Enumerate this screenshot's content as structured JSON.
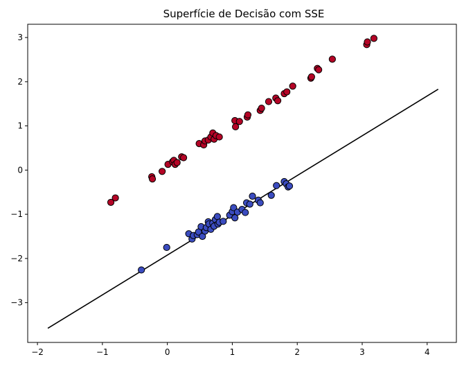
{
  "chart_data": {
    "type": "scatter",
    "title": "Superfície de Decisão com SSE",
    "xlabel": "",
    "ylabel": "",
    "xlim": [
      -2.15,
      4.45
    ],
    "ylim": [
      -3.9,
      3.3
    ],
    "xticks": [
      -2,
      -1,
      0,
      1,
      2,
      3,
      4
    ],
    "yticks": [
      -3,
      -2,
      -1,
      0,
      1,
      2,
      3
    ],
    "xtick_labels": [
      "−2",
      "−1",
      "0",
      "1",
      "2",
      "3",
      "4"
    ],
    "ytick_labels": [
      "−3",
      "−2",
      "−1",
      "0",
      "1",
      "2",
      "3"
    ],
    "grid": false,
    "legend": "none",
    "series": [
      {
        "color": "#b40426",
        "points": [
          [
            -0.87,
            -0.73
          ],
          [
            -0.8,
            -0.63
          ],
          [
            -0.24,
            -0.15
          ],
          [
            -0.23,
            -0.2
          ],
          [
            -0.08,
            -0.03
          ],
          [
            0.01,
            0.13
          ],
          [
            0.08,
            0.19
          ],
          [
            0.1,
            0.22
          ],
          [
            0.12,
            0.13
          ],
          [
            0.15,
            0.17
          ],
          [
            0.22,
            0.3
          ],
          [
            0.25,
            0.28
          ],
          [
            0.49,
            0.6
          ],
          [
            0.56,
            0.57
          ],
          [
            0.58,
            0.66
          ],
          [
            0.63,
            0.68
          ],
          [
            0.67,
            0.75
          ],
          [
            0.7,
            0.84
          ],
          [
            0.72,
            0.7
          ],
          [
            0.75,
            0.78
          ],
          [
            0.8,
            0.75
          ],
          [
            1.04,
            1.12
          ],
          [
            1.05,
            0.98
          ],
          [
            1.11,
            1.1
          ],
          [
            1.23,
            1.2
          ],
          [
            1.24,
            1.25
          ],
          [
            1.43,
            1.35
          ],
          [
            1.45,
            1.4
          ],
          [
            1.56,
            1.55
          ],
          [
            1.67,
            1.63
          ],
          [
            1.7,
            1.57
          ],
          [
            1.8,
            1.73
          ],
          [
            1.84,
            1.77
          ],
          [
            1.93,
            1.9
          ],
          [
            2.21,
            2.08
          ],
          [
            2.22,
            2.11
          ],
          [
            2.31,
            2.3
          ],
          [
            2.33,
            2.27
          ],
          [
            2.54,
            2.51
          ],
          [
            3.07,
            2.84
          ],
          [
            3.08,
            2.9
          ],
          [
            3.18,
            2.98
          ]
        ]
      },
      {
        "color": "#3b4cc0",
        "points": [
          [
            -0.4,
            -2.26
          ],
          [
            -0.01,
            -1.75
          ],
          [
            0.33,
            -1.44
          ],
          [
            0.38,
            -1.56
          ],
          [
            0.4,
            -1.48
          ],
          [
            0.46,
            -1.46
          ],
          [
            0.48,
            -1.4
          ],
          [
            0.52,
            -1.28
          ],
          [
            0.54,
            -1.5
          ],
          [
            0.58,
            -1.38
          ],
          [
            0.6,
            -1.3
          ],
          [
            0.63,
            -1.17
          ],
          [
            0.64,
            -1.22
          ],
          [
            0.67,
            -1.34
          ],
          [
            0.7,
            -1.2
          ],
          [
            0.72,
            -1.27
          ],
          [
            0.74,
            -1.12
          ],
          [
            0.77,
            -1.05
          ],
          [
            0.78,
            -1.22
          ],
          [
            0.8,
            -1.18
          ],
          [
            0.86,
            -1.16
          ],
          [
            0.96,
            -1.02
          ],
          [
            1.0,
            -0.94
          ],
          [
            1.02,
            -0.85
          ],
          [
            1.04,
            -1.08
          ],
          [
            1.08,
            -0.95
          ],
          [
            1.15,
            -0.89
          ],
          [
            1.2,
            -0.96
          ],
          [
            1.22,
            -0.74
          ],
          [
            1.27,
            -0.77
          ],
          [
            1.31,
            -0.59
          ],
          [
            1.4,
            -0.68
          ],
          [
            1.43,
            -0.74
          ],
          [
            1.6,
            -0.57
          ],
          [
            1.68,
            -0.35
          ],
          [
            1.8,
            -0.26
          ],
          [
            1.83,
            -0.31
          ],
          [
            1.86,
            -0.38
          ],
          [
            1.88,
            -0.36
          ]
        ]
      }
    ],
    "decision_line": {
      "color": "#000000",
      "x": [
        -1.84,
        4.17
      ],
      "y": [
        -3.58,
        1.83
      ]
    }
  }
}
